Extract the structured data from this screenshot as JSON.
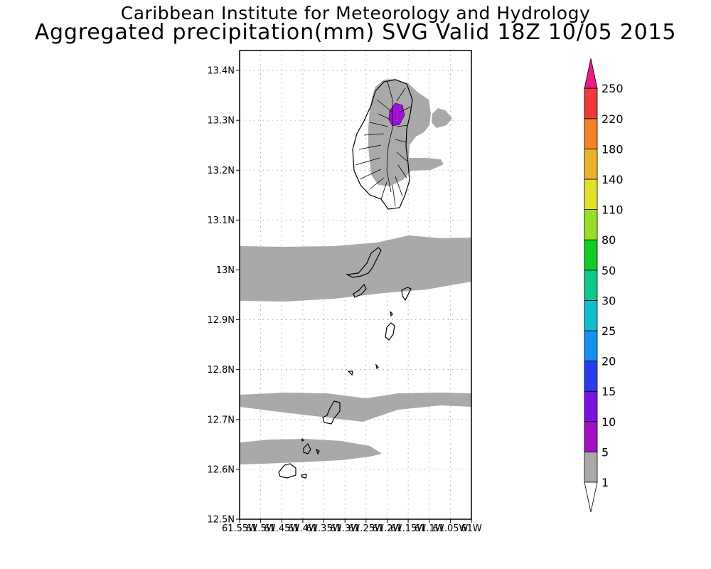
{
  "title_line1": "Caribbean Institute for Meteorology and Hydrology",
  "title_line2": "Aggregated precipitation(mm) SVG Valid 18Z 10/05 2015",
  "map": {
    "lat_labels": [
      "13.4N",
      "13.3N",
      "13.2N",
      "13.1N",
      "13N",
      "12.9N",
      "12.8N",
      "12.7N",
      "12.6N",
      "12.5N"
    ],
    "lon_labels": [
      "61.55W",
      "61.5W",
      "61.45W",
      "61.4W",
      "61.35W",
      "61.3W",
      "61.25W",
      "61.2W",
      "61.15W",
      "61.1W",
      "61.05W",
      "61W"
    ],
    "lat_range": [
      12.5,
      13.44
    ],
    "lon_range": [
      -61.55,
      -61.0
    ],
    "grid": "dotted",
    "precip_fill_color": "#a9a9a9",
    "precip_core_color": "#9b10d6"
  },
  "colorbar": {
    "labels": [
      "1",
      "5",
      "10",
      "15",
      "20",
      "25",
      "30",
      "50",
      "80",
      "110",
      "140",
      "180",
      "220",
      "250"
    ],
    "colors": [
      "#a9a9a9",
      "#a40fc8",
      "#7a12e0",
      "#2a3cf0",
      "#1591f0",
      "#0ebfcf",
      "#0ec88e",
      "#11cc22",
      "#98e028",
      "#e4e02a",
      "#ebb32b",
      "#f48125",
      "#f03a3a"
    ],
    "top_arrow_color": "#ea1a84",
    "bottom_arrow_color": "#ffffff"
  }
}
